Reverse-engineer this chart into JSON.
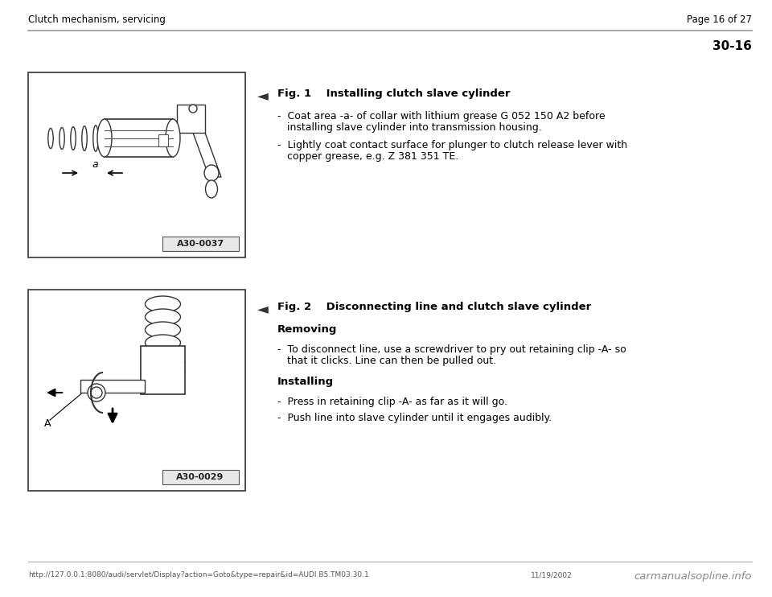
{
  "bg_color": "#ffffff",
  "header_left": "Clutch mechanism, servicing",
  "header_right": "Page 16 of 27",
  "section_number": "30-16",
  "fig1_caption_num": "Fig. 1",
  "fig1_caption_text": "Installing clutch slave cylinder",
  "fig1_bullet1_line1": "-  Coat area -a- of collar with lithium grease G 052 150 A2 before",
  "fig1_bullet1_line2": "   installing slave cylinder into transmission housing.",
  "fig1_bullet2_line1": "-  Lightly coat contact surface for plunger to clutch release lever with",
  "fig1_bullet2_line2": "   copper grease, e.g. Z 381 351 TE.",
  "fig1_label": "A30-0037",
  "fig2_caption_num": "Fig. 2",
  "fig2_caption_text": "Disconnecting line and clutch slave cylinder",
  "fig2_removing": "Removing",
  "fig2_bullet1_line1": "-  To disconnect line, use a screwdriver to pry out retaining clip -A- so",
  "fig2_bullet1_line2": "   that it clicks. Line can then be pulled out.",
  "fig2_installing": "Installing",
  "fig2_install_b1": "-  Press in retaining clip -A- as far as it will go.",
  "fig2_install_b2": "-  Push line into slave cylinder until it engages audibly.",
  "fig2_label": "A30-0029",
  "footer_url": "http://127.0.0.1:8080/audi/servlet/Display?action=Goto&type=repair&id=AUDI.B5.TM03.30.1",
  "footer_date": "11/19/2002",
  "footer_watermark": "carmanualsopline.info",
  "text_color": "#000000",
  "line_color": "#aaaaaa",
  "img_border_color": "#333333",
  "label_box_color": "#e8e8e8"
}
